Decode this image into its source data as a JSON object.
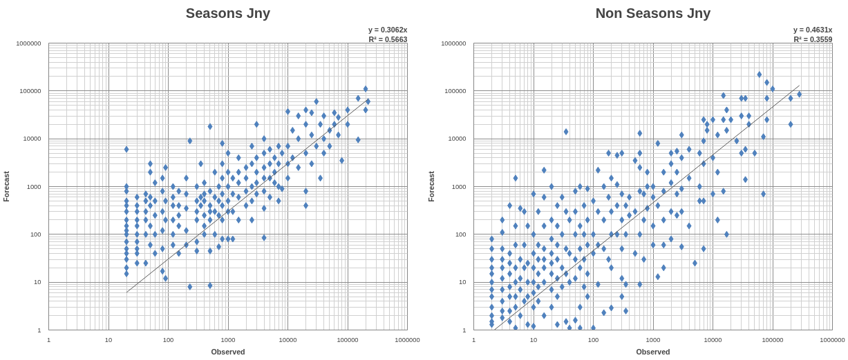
{
  "chart_data": [
    {
      "type": "scatter",
      "title": "Seasons Jny",
      "xlabel": "Observed",
      "ylabel": "Forecast",
      "log": "xy",
      "xlim": [
        1,
        1000000
      ],
      "ylim": [
        1,
        1000000
      ],
      "xticks": [
        1,
        10,
        100,
        1000,
        10000,
        100000,
        1000000
      ],
      "yticks": [
        1,
        10,
        100,
        1000,
        10000,
        100000,
        1000000
      ],
      "grid": true,
      "marker": "diamond",
      "annotations": [
        "y = 0.3062x",
        "R² = 0.5663"
      ],
      "series": [
        {
          "color": "#4f81bd",
          "x": [
            20,
            20,
            20,
            20,
            20,
            20,
            20,
            20,
            20,
            20,
            20,
            20,
            20,
            20,
            20,
            20,
            30,
            30,
            30,
            30,
            30,
            30,
            30,
            30,
            30,
            30,
            42,
            42,
            42,
            42,
            42,
            42,
            50,
            50,
            50,
            50,
            50,
            50,
            60,
            60,
            60,
            60,
            60,
            80,
            80,
            80,
            80,
            80,
            80,
            90,
            90,
            90,
            90,
            120,
            120,
            120,
            120,
            120,
            120,
            150,
            150,
            150,
            150,
            150,
            200,
            200,
            200,
            200,
            200,
            230,
            230,
            300,
            300,
            300,
            300,
            300,
            300,
            350,
            350,
            350,
            400,
            400,
            400,
            400,
            400,
            400,
            500,
            500,
            500,
            500,
            500,
            500,
            500,
            600,
            600,
            600,
            600,
            700,
            700,
            700,
            700,
            800,
            800,
            800,
            800,
            800,
            800,
            800,
            1000,
            1000,
            1000,
            1000,
            1000,
            1000,
            1200,
            1200,
            1200,
            1200,
            1500,
            1500,
            1500,
            1500,
            1500,
            2000,
            2000,
            2000,
            2000,
            2500,
            2500,
            2500,
            2500,
            2500,
            3000,
            3000,
            3000,
            3000,
            3000,
            4000,
            4000,
            4000,
            4000,
            4000,
            4000,
            4000,
            5000,
            5000,
            5000,
            5000,
            6000,
            6000,
            6000,
            7000,
            7000,
            7000,
            7000,
            8000,
            8000,
            10000,
            10000,
            10000,
            10000,
            12000,
            12000,
            15000,
            15000,
            15000,
            20000,
            20000,
            20000,
            20000,
            20000,
            25000,
            25000,
            25000,
            30000,
            30000,
            35000,
            35000,
            40000,
            40000,
            40000,
            50000,
            50000,
            60000,
            60000,
            70000,
            70000,
            80000,
            100000,
            100000,
            150000,
            150000,
            200000,
            200000,
            220000
          ],
          "values": [
            1000,
            800,
            500,
            400,
            300,
            200,
            150,
            120,
            100,
            70,
            50,
            40,
            30,
            20,
            15,
            6000,
            600,
            400,
            300,
            200,
            150,
            100,
            70,
            50,
            40,
            25,
            700,
            500,
            300,
            200,
            100,
            25,
            3000,
            2000,
            600,
            400,
            150,
            60,
            1200,
            500,
            250,
            100,
            40,
            1500,
            800,
            300,
            120,
            50,
            17,
            2500,
            12,
            500,
            200,
            1000,
            600,
            400,
            200,
            100,
            60,
            800,
            400,
            250,
            150,
            40,
            1500,
            700,
            350,
            120,
            60,
            9000,
            8,
            1000,
            500,
            300,
            200,
            70,
            45,
            3000,
            600,
            400,
            1200,
            700,
            500,
            250,
            150,
            100,
            18000,
            8.5,
            800,
            400,
            300,
            200,
            45,
            2000,
            600,
            300,
            100,
            1000,
            500,
            250,
            55,
            8000,
            3000,
            1500,
            700,
            400,
            200,
            80,
            5000,
            2000,
            1000,
            500,
            300,
            80,
            1500,
            700,
            300,
            80,
            4000,
            2000,
            1200,
            600,
            200,
            2500,
            1500,
            800,
            400,
            7000,
            3000,
            1000,
            500,
            200,
            20000,
            4000,
            2000,
            1200,
            700,
            10000,
            5000,
            2500,
            1500,
            800,
            350,
            85,
            6000,
            3000,
            1500,
            600,
            4000,
            2000,
            1200,
            7000,
            3000,
            1000,
            500,
            5000,
            900,
            37000,
            7000,
            3000,
            1500,
            15000,
            4000,
            30000,
            10000,
            2500,
            40000,
            20000,
            5000,
            800,
            400,
            35000,
            12000,
            3000,
            60000,
            7000,
            20000,
            1500,
            30000,
            10000,
            5000,
            15000,
            7000,
            35000,
            20000,
            12000,
            28000,
            3500,
            40000,
            20000,
            70000,
            9500,
            110000,
            40000,
            60000
          ]
        },
        {
          "type": "line",
          "marker": "none",
          "color": "#595959",
          "x": [
            20,
            220000
          ],
          "values": [
            6.1,
            67000
          ]
        }
      ]
    },
    {
      "type": "scatter",
      "title": "Non Seasons Jny",
      "xlabel": "Observed",
      "ylabel": "Forecast",
      "log": "xy",
      "xlim": [
        1,
        1000000
      ],
      "ylim": [
        1,
        1000000
      ],
      "xticks": [
        1,
        10,
        100,
        1000,
        10000,
        100000,
        1000000
      ],
      "yticks": [
        1,
        10,
        100,
        1000,
        10000,
        100000,
        1000000
      ],
      "grid": true,
      "marker": "diamond",
      "annotations": [
        "y = 0.4631x",
        "R² = 0.3559"
      ],
      "series": [
        {
          "color": "#4f81bd",
          "x": [
            2,
            2,
            2,
            2,
            2,
            2,
            2,
            2,
            2,
            2,
            2,
            2,
            3,
            3,
            3,
            3,
            3,
            3,
            3,
            3,
            3,
            3,
            4,
            4,
            4,
            4,
            4,
            4,
            4,
            4,
            5,
            5,
            5,
            5,
            5,
            5,
            5,
            5,
            6,
            6,
            6,
            6,
            6,
            7,
            7,
            7,
            7,
            8,
            8,
            8,
            8,
            8,
            10,
            10,
            10,
            10,
            10,
            10,
            10,
            10,
            12,
            12,
            12,
            12,
            12,
            12,
            15,
            15,
            15,
            15,
            15,
            15,
            15,
            15,
            20,
            20,
            20,
            20,
            20,
            20,
            20,
            20,
            25,
            25,
            25,
            25,
            25,
            25,
            25,
            30,
            30,
            30,
            30,
            35,
            35,
            35,
            35,
            35,
            40,
            40,
            40,
            40,
            50,
            50,
            50,
            50,
            50,
            50,
            60,
            60,
            60,
            60,
            60,
            60,
            70,
            70,
            70,
            70,
            80,
            80,
            80,
            80,
            80,
            100,
            100,
            100,
            100,
            120,
            120,
            120,
            120,
            150,
            150,
            150,
            150,
            180,
            180,
            180,
            200,
            200,
            200,
            200,
            200,
            250,
            250,
            250,
            250,
            300,
            300,
            300,
            300,
            300,
            300,
            350,
            350,
            350,
            350,
            400,
            400,
            500,
            500,
            500,
            600,
            600,
            600,
            600,
            600,
            600,
            700,
            700,
            700,
            800,
            800,
            800,
            1000,
            1000,
            1000,
            1000,
            1200,
            1200,
            1200,
            1500,
            1500,
            1500,
            1500,
            1500,
            2000,
            2000,
            2000,
            2000,
            2000,
            2500,
            2500,
            2500,
            2500,
            3000,
            3000,
            3000,
            3000,
            3000,
            4000,
            4000,
            4000,
            5000,
            6000,
            6000,
            6000,
            7000,
            7000,
            7000,
            7000,
            7000,
            8000,
            8000,
            10000,
            10000,
            10000,
            12000,
            12000,
            12000,
            15000,
            15000,
            15000,
            17000,
            17000,
            17000,
            20000,
            25000,
            30000,
            30000,
            30000,
            35000,
            35000,
            35000,
            40000,
            40000,
            50000,
            60000,
            70000,
            70000,
            80000,
            80000,
            80000,
            100000,
            200000,
            200000,
            280000
          ],
          "values": [
            80,
            50,
            30,
            20,
            15,
            10,
            7,
            5,
            3,
            2,
            1.5,
            1.3,
            200,
            110,
            50,
            30,
            20,
            12,
            7,
            4,
            2.5,
            1.8,
            400,
            40,
            25,
            15,
            8,
            5,
            2.5,
            1.5,
            1500,
            150,
            60,
            20,
            10,
            5,
            3,
            1.1,
            350,
            30,
            12,
            7,
            2,
            300,
            60,
            20,
            4,
            150,
            25,
            10,
            5,
            1.3,
            700,
            100,
            40,
            20,
            10,
            6,
            3,
            1.2,
            300,
            60,
            30,
            15,
            8,
            4,
            2200,
            600,
            150,
            50,
            30,
            20,
            10,
            2,
            1000,
            200,
            80,
            40,
            25,
            15,
            7,
            3,
            400,
            150,
            60,
            30,
            12,
            5,
            1.3,
            600,
            100,
            20,
            8,
            14000,
            300,
            50,
            15,
            1.5,
            200,
            40,
            10,
            1.1,
            800,
            300,
            100,
            30,
            12,
            1.6,
            1000,
            150,
            50,
            20,
            3,
            1.1,
            400,
            100,
            30,
            8,
            900,
            200,
            60,
            15,
            5,
            500,
            100,
            40,
            1.1,
            2200,
            300,
            60,
            9,
            1000,
            200,
            50,
            2.3,
            5000,
            600,
            30,
            1500,
            300,
            100,
            20,
            2.9,
            4500,
            1100,
            400,
            100,
            5000,
            700,
            200,
            50,
            12,
            5,
            400,
            100,
            9,
            2.5,
            600,
            250,
            3500,
            300,
            40,
            13000,
            5000,
            2500,
            800,
            100,
            9,
            700,
            200,
            30,
            2000,
            1000,
            350,
            1000,
            600,
            150,
            60,
            8000,
            400,
            13,
            2000,
            800,
            200,
            60,
            20,
            5000,
            3000,
            1200,
            300,
            80,
            5500,
            2000,
            700,
            250,
            12000,
            4000,
            900,
            300,
            55,
            6000,
            1500,
            150,
            25,
            5000,
            1000,
            500,
            25000,
            9000,
            3000,
            500,
            50,
            20000,
            15000,
            25000,
            4000,
            700,
            12000,
            2000,
            200,
            80000,
            25000,
            800,
            40000,
            15000,
            100,
            25000,
            9000,
            70000,
            30000,
            5000,
            70000,
            6000,
            1400,
            30000,
            20000,
            5000,
            220000,
            11000,
            700,
            150000,
            70000,
            25000,
            110000,
            70000,
            20000,
            85000
          ]
        },
        {
          "type": "line",
          "marker": "none",
          "color": "#595959",
          "x": [
            2.2,
            280000
          ],
          "values": [
            1.0,
            130000
          ]
        }
      ]
    }
  ]
}
